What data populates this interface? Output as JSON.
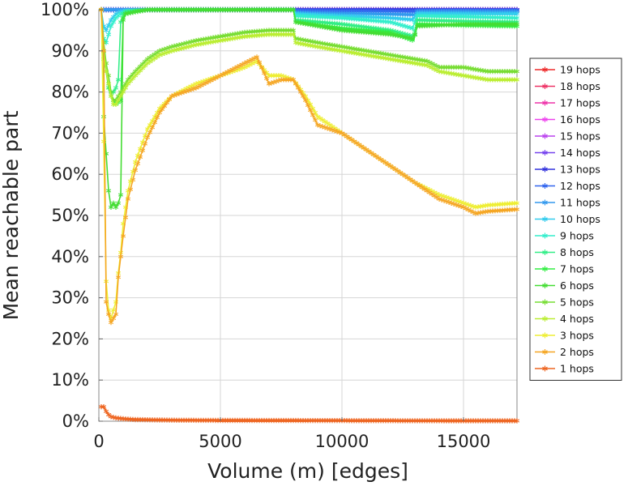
{
  "chart_data": {
    "type": "line",
    "title": "",
    "xlabel": "Volume (m) [edges]",
    "ylabel": "Mean reachable part",
    "xlim": [
      0,
      17200
    ],
    "ylim": [
      0,
      100
    ],
    "xticks": [
      0,
      5000,
      10000,
      15000
    ],
    "xtick_labels": [
      "0",
      "5000",
      "10000",
      "15000"
    ],
    "yticks": [
      0,
      10,
      20,
      30,
      40,
      50,
      60,
      70,
      80,
      90,
      100
    ],
    "ytick_labels": [
      "0%",
      "10%",
      "20%",
      "30%",
      "40%",
      "50%",
      "60%",
      "70%",
      "80%",
      "90%",
      "100%"
    ],
    "grid": true,
    "legend_position": "right",
    "marker": "asterisk",
    "series": [
      {
        "name": "19 hops",
        "color": "#ee2a2a",
        "x": [
          100,
          17200
        ],
        "y": [
          100,
          100
        ]
      },
      {
        "name": "18 hops",
        "color": "#ee3366",
        "x": [
          100,
          17200
        ],
        "y": [
          100,
          100
        ]
      },
      {
        "name": "17 hops",
        "color": "#ee33aa",
        "x": [
          100,
          17200
        ],
        "y": [
          100,
          100
        ]
      },
      {
        "name": "16 hops",
        "color": "#ee44ee",
        "x": [
          100,
          17200
        ],
        "y": [
          100,
          100
        ]
      },
      {
        "name": "15 hops",
        "color": "#bb44ee",
        "x": [
          100,
          17200
        ],
        "y": [
          100,
          100
        ]
      },
      {
        "name": "14 hops",
        "color": "#7744ee",
        "x": [
          100,
          17200
        ],
        "y": [
          100,
          100
        ]
      },
      {
        "name": "13 hops",
        "color": "#3333dd",
        "x": [
          100,
          8000,
          8100,
          17200
        ],
        "y": [
          100,
          100,
          100,
          100
        ]
      },
      {
        "name": "12 hops",
        "color": "#3366ee",
        "x": [
          100,
          8000,
          8100,
          13000,
          13100,
          17200
        ],
        "y": [
          100,
          100,
          99.8,
          99.6,
          99.8,
          99.8
        ]
      },
      {
        "name": "11 hops",
        "color": "#3399ee",
        "x": [
          100,
          8000,
          8100,
          13000,
          13100,
          17200
        ],
        "y": [
          100,
          100,
          99.3,
          98.8,
          99.5,
          99.5
        ]
      },
      {
        "name": "10 hops",
        "color": "#33ccee",
        "x": [
          100,
          200,
          300,
          500,
          700,
          900,
          1100,
          2000,
          8000,
          8100,
          10000,
          12000,
          12900,
          13100,
          15000,
          17200
        ],
        "y": [
          100,
          96,
          95,
          97.5,
          99,
          99.5,
          99.8,
          100,
          100,
          99,
          98.5,
          98,
          97.6,
          99.1,
          99,
          99
        ]
      },
      {
        "name": "9 hops",
        "color": "#33eecc",
        "x": [
          100,
          200,
          300,
          400,
          500,
          700,
          900,
          1100,
          2000,
          8000,
          8100,
          10000,
          12000,
          12900,
          13100,
          15000,
          17200
        ],
        "y": [
          100,
          93,
          92,
          94,
          96,
          98,
          99,
          99.5,
          100,
          100,
          98.5,
          98,
          97,
          95.5,
          98.5,
          98.3,
          98
        ]
      },
      {
        "name": "8 hops",
        "color": "#33ee88",
        "x": [
          100,
          200,
          300,
          400,
          500,
          600,
          700,
          800,
          900,
          1000,
          1100,
          1500,
          2000,
          8000,
          8100,
          10000,
          12000,
          12950,
          13100,
          15000,
          17200
        ],
        "y": [
          100,
          90,
          85,
          82,
          80,
          80,
          81,
          83,
          97,
          99,
          99.5,
          99.8,
          100,
          100,
          97.5,
          96.5,
          95,
          93.5,
          97.5,
          97.2,
          97
        ]
      },
      {
        "name": "7 hops",
        "color": "#33ee44",
        "x": [
          100,
          200,
          300,
          400,
          500,
          600,
          700,
          800,
          900,
          1000,
          1100,
          1500,
          2000,
          8000,
          8100,
          10000,
          12000,
          12950,
          13100,
          15000,
          17200
        ],
        "y": [
          100,
          88,
          85,
          81,
          79,
          78,
          77,
          77.5,
          78,
          98,
          99,
          99.5,
          100,
          100,
          97,
          95.5,
          94.5,
          92.5,
          96.5,
          96.2,
          96
        ]
      },
      {
        "name": "6 hops",
        "color": "#44dd33",
        "x": [
          100,
          200,
          300,
          400,
          500,
          600,
          700,
          800,
          900,
          1000,
          1100,
          1500,
          2000,
          8000,
          8100,
          10000,
          12000,
          12950,
          13100,
          15000,
          17200
        ],
        "y": [
          100,
          74,
          65,
          56,
          52,
          53,
          52,
          53,
          55,
          97.5,
          99,
          99.5,
          100,
          100,
          97,
          95,
          94,
          93,
          96,
          96.5,
          96.5
        ]
      },
      {
        "name": "5 hops",
        "color": "#77dd33",
        "x": [
          100,
          200,
          300,
          400,
          500,
          600,
          700,
          800,
          900,
          1000,
          1100,
          1200,
          1500,
          2000,
          2500,
          3000,
          4000,
          5000,
          6000,
          7000,
          7500,
          8000,
          8100,
          9000,
          10000,
          11000,
          12000,
          13000,
          13500,
          14000,
          15000,
          16000,
          17200
        ],
        "y": [
          100,
          92,
          87,
          84,
          80,
          78,
          78,
          79,
          80,
          81,
          82,
          83,
          85,
          88,
          90,
          91,
          92.5,
          93.5,
          94.5,
          95,
          95,
          95,
          93,
          92,
          91,
          90,
          89,
          88,
          87.5,
          86,
          86,
          85,
          85
        ]
      },
      {
        "name": "4 hops",
        "color": "#bbee33",
        "x": [
          100,
          200,
          300,
          400,
          500,
          600,
          700,
          800,
          900,
          1000,
          1100,
          1200,
          1500,
          2000,
          2500,
          3000,
          4000,
          5000,
          6000,
          7000,
          7500,
          8000,
          8100,
          9000,
          10000,
          11000,
          12000,
          13000,
          13500,
          14000,
          15000,
          16000,
          17200
        ],
        "y": [
          100,
          90,
          85,
          82,
          79,
          77,
          77,
          78,
          79,
          80,
          81,
          82,
          84,
          87,
          89,
          90,
          91.5,
          92.5,
          93.5,
          94,
          94,
          94,
          92,
          91,
          90,
          89,
          88,
          87,
          86.5,
          85,
          84,
          83,
          83
        ]
      },
      {
        "name": "3 hops",
        "color": "#eeee33",
        "x": [
          100,
          200,
          300,
          400,
          500,
          600,
          700,
          800,
          900,
          1000,
          1200,
          1500,
          2000,
          2500,
          3000,
          4000,
          5000,
          6000,
          6500,
          7000,
          7500,
          8000,
          8500,
          9000,
          10000,
          11000,
          12000,
          13000,
          14000,
          15000,
          15500,
          16000,
          17200
        ],
        "y": [
          100,
          68,
          34,
          27,
          25,
          27,
          29,
          36,
          41,
          48,
          56,
          63,
          71,
          76,
          79,
          82,
          84,
          86,
          87.5,
          84,
          84,
          83,
          79,
          74,
          70,
          66,
          62,
          58,
          55,
          53,
          52,
          52.5,
          53
        ]
      },
      {
        "name": "2 hops",
        "color": "#f5a623",
        "x": [
          100,
          200,
          300,
          400,
          500,
          600,
          700,
          800,
          900,
          1000,
          1200,
          1500,
          2000,
          2500,
          3000,
          4000,
          5000,
          6000,
          6500,
          7000,
          7500,
          8000,
          8500,
          9000,
          10000,
          11000,
          12000,
          13000,
          14000,
          15000,
          15500,
          16000,
          17200
        ],
        "y": [
          100,
          90,
          29,
          26,
          24,
          25,
          26,
          35,
          40,
          45,
          54,
          61,
          69,
          75,
          79,
          81,
          84,
          87,
          88.5,
          82,
          83,
          83,
          78,
          72,
          70,
          66,
          62,
          58,
          54,
          52,
          50.5,
          51,
          51.5
        ]
      },
      {
        "name": "1 hops",
        "color": "#ee6622",
        "x": [
          100,
          200,
          300,
          400,
          500,
          700,
          1000,
          1500,
          2000,
          3000,
          5000,
          10000,
          15000,
          17200
        ],
        "y": [
          3.5,
          3.5,
          2.4,
          1.6,
          1.1,
          0.8,
          0.6,
          0.4,
          0.35,
          0.25,
          0.2,
          0.15,
          0.1,
          0.1
        ]
      }
    ]
  }
}
